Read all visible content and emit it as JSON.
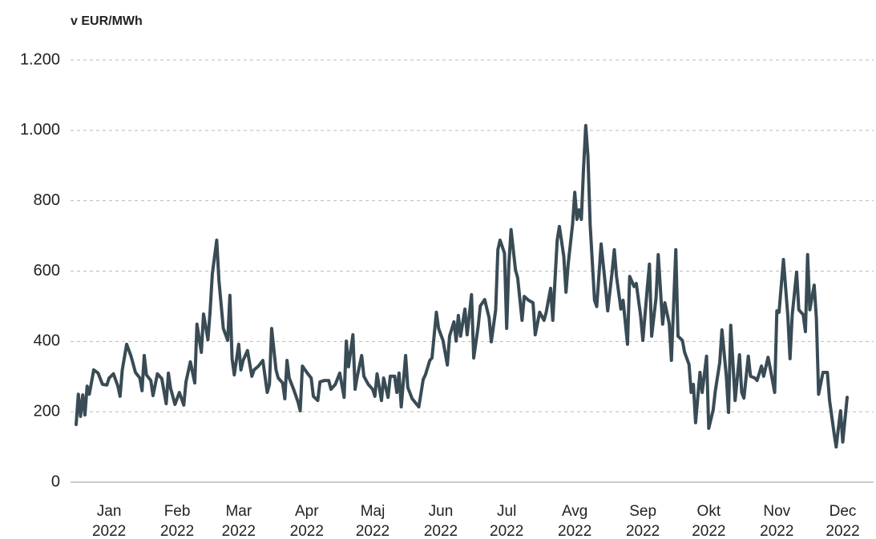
{
  "chart_data": {
    "type": "line",
    "y_label": "v EUR/MWh",
    "x": [
      1,
      2,
      3,
      4,
      5,
      6,
      7,
      9,
      11,
      13,
      15,
      16,
      18,
      20,
      21,
      22,
      24,
      26,
      28,
      30,
      31,
      32,
      33,
      35,
      36,
      38,
      40,
      42,
      43,
      44,
      46,
      48,
      50,
      51,
      53,
      55,
      56,
      58,
      59,
      61,
      62,
      63,
      65,
      66,
      68,
      70,
      71,
      72,
      73,
      75,
      76,
      77,
      79,
      81,
      82,
      84,
      86,
      88,
      89,
      90,
      92,
      93,
      95,
      96,
      97,
      98,
      100,
      102,
      103,
      104,
      106,
      108,
      109,
      111,
      112,
      114,
      116,
      117,
      119,
      121,
      123,
      124,
      125,
      127,
      128,
      129,
      131,
      132,
      134,
      136,
      137,
      138,
      140,
      141,
      143,
      144,
      146,
      147,
      148,
      149,
      151,
      152,
      154,
      157,
      159,
      160,
      162,
      163,
      165,
      166,
      168,
      170,
      171,
      173,
      174,
      175,
      176,
      178,
      179,
      181,
      182,
      184,
      185,
      187,
      189,
      190,
      192,
      193,
      194,
      196,
      197,
      198,
      199,
      201,
      202,
      204,
      205,
      207,
      209,
      210,
      212,
      214,
      215,
      217,
      218,
      220,
      221,
      223,
      224,
      225,
      227,
      228,
      229,
      230,
      231,
      232,
      233,
      234,
      235,
      237,
      238,
      240,
      242,
      243,
      245,
      246,
      247,
      249,
      250,
      252,
      253,
      255,
      256,
      258,
      259,
      261,
      262,
      263,
      265,
      266,
      268,
      269,
      271,
      272,
      274,
      275,
      277,
      278,
      280,
      281,
      282,
      283,
      285,
      286,
      288,
      289,
      291,
      292,
      294,
      295,
      297,
      298,
      299,
      301,
      303,
      304,
      305,
      307,
      308,
      310,
      311,
      313,
      314,
      316,
      317,
      319,
      320,
      321,
      323,
      325,
      326,
      327,
      329,
      330,
      332,
      333,
      334,
      335,
      337,
      338,
      339,
      341,
      343,
      344,
      346,
      347,
      348,
      349,
      350,
      352
    ],
    "series": [
      {
        "name": "EUR/MWh",
        "color": "#394b55",
        "values": [
          164,
          250,
          187,
          248,
          191,
          273,
          250,
          319,
          310,
          278,
          276,
          296,
          308,
          273,
          244,
          319,
          392,
          358,
          312,
          296,
          260,
          360,
          305,
          289,
          246,
          308,
          294,
          223,
          310,
          267,
          221,
          255,
          219,
          285,
          342,
          282,
          449,
          369,
          478,
          405,
          487,
          592,
          688,
          574,
          437,
          403,
          531,
          351,
          305,
          392,
          319,
          346,
          374,
          301,
          319,
          330,
          346,
          255,
          278,
          437,
          319,
          296,
          282,
          237,
          346,
          296,
          264,
          228,
          203,
          330,
          312,
          296,
          244,
          232,
          285,
          289,
          289,
          264,
          278,
          310,
          241,
          401,
          328,
          419,
          264,
          301,
          360,
          301,
          278,
          264,
          244,
          308,
          232,
          296,
          241,
          301,
          301,
          255,
          310,
          214,
          360,
          269,
          237,
          214,
          292,
          305,
          346,
          353,
          483,
          437,
          403,
          333,
          415,
          456,
          401,
          474,
          415,
          492,
          419,
          533,
          353,
          442,
          501,
          519,
          467,
          399,
          490,
          661,
          688,
          651,
          437,
          620,
          718,
          604,
          581,
          460,
          528,
          517,
          510,
          419,
          483,
          460,
          483,
          551,
          460,
          688,
          727,
          642,
          540,
          620,
          733,
          824,
          747,
          774,
          747,
          893,
          1014,
          927,
          733,
          517,
          499,
          677,
          556,
          487,
          597,
          661,
          585,
          492,
          517,
          392,
          585,
          556,
          565,
          472,
          403,
          551,
          620,
          415,
          524,
          647,
          449,
          510,
          451,
          346,
          661,
          415,
          403,
          369,
          335,
          255,
          278,
          169,
          312,
          255,
          358,
          153,
          205,
          260,
          340,
          433,
          301,
          198,
          446,
          232,
          362,
          255,
          239,
          358,
          301,
          296,
          289,
          330,
          301,
          355,
          323,
          255,
          487,
          483,
          633,
          472,
          351,
          476,
          597,
          490,
          476,
          428,
          647,
          490,
          560,
          465,
          250,
          312,
          312,
          232,
          141,
          100,
          153,
          203,
          114,
          241
        ]
      }
    ],
    "xlim": [
      1,
      352
    ],
    "xticks": [
      {
        "value": 16,
        "label": "Jan 2022"
      },
      {
        "value": 47,
        "label": "Feb 2022"
      },
      {
        "value": 75,
        "label": "Mar 2022"
      },
      {
        "value": 106,
        "label": "Apr 2022"
      },
      {
        "value": 136,
        "label": "Maj 2022"
      },
      {
        "value": 167,
        "label": "Jun 2022"
      },
      {
        "value": 197,
        "label": "Jul 2022"
      },
      {
        "value": 228,
        "label": "Avg 2022"
      },
      {
        "value": 259,
        "label": "Sep 2022"
      },
      {
        "value": 289,
        "label": "Okt 2022"
      },
      {
        "value": 320,
        "label": "Nov 2022"
      },
      {
        "value": 350,
        "label": "Dec 2022"
      }
    ],
    "ylim": [
      0,
      1200
    ],
    "yticks": [
      0,
      200,
      400,
      600,
      800,
      {
        "value": 1000,
        "label": "1.000"
      },
      {
        "value": 1200,
        "label": "1.200"
      }
    ],
    "grid": true
  }
}
